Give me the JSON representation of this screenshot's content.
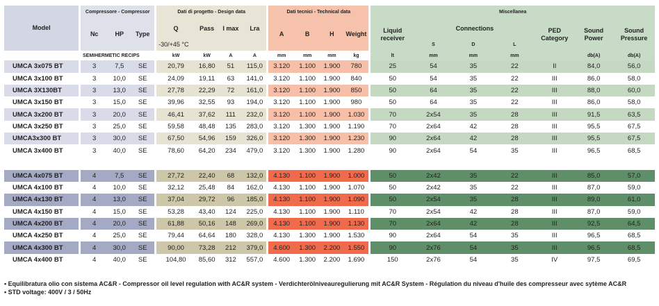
{
  "header": {
    "model": "Model",
    "groups": [
      "Compressore - Compressor",
      "Dati di progetto - Design data",
      "Dati tecnici - Technical data",
      "Miscellanea"
    ],
    "columns": [
      "Nc",
      "HP",
      "Type",
      "Q",
      "Pass",
      "I max",
      "Lra",
      "A",
      "B",
      "H",
      "Weight",
      "Liquid receiver",
      "Connections",
      "PED Category",
      "Sound Power",
      "Sound Pressure"
    ],
    "temperature": "-30/+45 °C",
    "connections_sub": [
      "S",
      "D",
      "L"
    ],
    "units": [
      "SEMIHERMETIC RECIPS",
      "kW",
      "kW",
      "A",
      "A",
      "mm",
      "mm",
      "mm",
      "kg",
      "lt",
      "mm",
      "mm",
      "mm",
      "db(A)",
      "db(A)"
    ]
  },
  "row_groups": [
    [
      [
        "UMCA 3x075 BT",
        "3",
        "7,5",
        "SE",
        "20,79",
        "16,80",
        "51",
        "115,0",
        "3.120",
        "1.100",
        "1.900",
        "780",
        "25",
        "54",
        "35",
        "22",
        "II",
        "84,0",
        "56,0"
      ],
      [
        "UMCA 3x100 BT",
        "3",
        "10,0",
        "SE",
        "24,09",
        "19,11",
        "63",
        "141,0",
        "3.120",
        "1.100",
        "1.900",
        "840",
        "50",
        "54",
        "35",
        "22",
        "III",
        "86,0",
        "58,0"
      ],
      [
        "UMCA 3X130BT",
        "3",
        "13,0",
        "SE",
        "27,78",
        "22,29",
        "72",
        "161,0",
        "3.120",
        "1.100",
        "1.900",
        "850",
        "50",
        "64",
        "35",
        "22",
        "III",
        "88,0",
        "60,0"
      ],
      [
        "UMCA 3x150 BT",
        "3",
        "15,0",
        "SE",
        "39,96",
        "32,55",
        "93",
        "194,0",
        "3.120",
        "1.100",
        "1.900",
        "980",
        "50",
        "64",
        "35",
        "22",
        "III",
        "86,0",
        "58,0"
      ],
      [
        "UMCA 3x200 BT",
        "3",
        "20,0",
        "SE",
        "46,41",
        "37,62",
        "111",
        "232,0",
        "3.120",
        "1.100",
        "1.900",
        "1.030",
        "70",
        "2x54",
        "35",
        "28",
        "III",
        "91,5",
        "63,5"
      ],
      [
        "UMCA 3x250 BT",
        "3",
        "25,0",
        "SE",
        "59,58",
        "48,48",
        "135",
        "283,0",
        "3.120",
        "1.300",
        "1.900",
        "1.190",
        "70",
        "2x64",
        "42",
        "28",
        "III",
        "95,5",
        "67,5"
      ],
      [
        "UMCA3x300 BT",
        "3",
        "30,0",
        "SE",
        "67,50",
        "54,96",
        "159",
        "326,0",
        "3.120",
        "1.300",
        "1.900",
        "1.230",
        "90",
        "2x64",
        "42",
        "28",
        "III",
        "95,5",
        "67,5"
      ],
      [
        "UMCA 3x400 BT",
        "3",
        "40,0",
        "SE",
        "78,60",
        "64,20",
        "234",
        "479,0",
        "3.120",
        "1.300",
        "1.900",
        "1.280",
        "90",
        "2x64",
        "54",
        "35",
        "III",
        "96,5",
        "68,5"
      ]
    ],
    [
      [
        "UMCA 4x075 BT",
        "4",
        "7,5",
        "SE",
        "27,72",
        "22,40",
        "68",
        "132,0",
        "4.130",
        "1.100",
        "1.900",
        "1.000",
        "50",
        "2x42",
        "35",
        "22",
        "III",
        "85,0",
        "57,0"
      ],
      [
        "UMCA 4x100 BT",
        "4",
        "10,0",
        "SE",
        "32,12",
        "25,48",
        "84",
        "162,0",
        "4.130",
        "1.100",
        "1.900",
        "1.070",
        "50",
        "2x42",
        "35",
        "22",
        "III",
        "87,0",
        "59,0"
      ],
      [
        "UMCA 4x130 BT",
        "4",
        "13,0",
        "SE",
        "37,04",
        "29,72",
        "96",
        "185,0",
        "4.130",
        "1.100",
        "1.900",
        "1.090",
        "50",
        "2x54",
        "35",
        "28",
        "III",
        "89,0",
        "61,0"
      ],
      [
        "UMCA 4x150 BT",
        "4",
        "15,0",
        "SE",
        "53,28",
        "43,40",
        "124",
        "225,0",
        "4.130",
        "1.100",
        "1.900",
        "1.110",
        "70",
        "2x54",
        "42",
        "28",
        "III",
        "87,0",
        "59,0"
      ],
      [
        "UMCA 4x200 BT",
        "4",
        "20,0",
        "SE",
        "61,88",
        "50,16",
        "148",
        "269,0",
        "4.130",
        "1.100",
        "1.900",
        "1.130",
        "70",
        "2x64",
        "42",
        "28",
        "III",
        "92,5",
        "64,5"
      ],
      [
        "UMCA 4x250 BT",
        "4",
        "25,0",
        "SE",
        "79,44",
        "64,64",
        "180",
        "328,0",
        "4.130",
        "1.300",
        "1.900",
        "1.530",
        "90",
        "2x64",
        "54",
        "35",
        "III",
        "96,5",
        "68,5"
      ],
      [
        "UMCA 4x300 BT",
        "4",
        "30,0",
        "SE",
        "90,00",
        "73,28",
        "212",
        "379,0",
        "4.600",
        "1.300",
        "2.200",
        "1.550",
        "90",
        "2x76",
        "54",
        "35",
        "III",
        "96,5",
        "68,5"
      ],
      [
        "UMCA 4x400 BT",
        "4",
        "40,0",
        "SE",
        "104,80",
        "85,60",
        "312",
        "557,0",
        "4.600",
        "1.300",
        "2.200",
        "1.690",
        "150",
        "2x76",
        "54",
        "35",
        "IV",
        "97,5",
        "69,5"
      ]
    ]
  ],
  "notes": [
    "• Equilibratura olio con sistema AC&R - Compressor oil level regulation with AC&R system - Verdichterölniveauregulierung mit AC&R System - Régulation du niveau d'huile des compresseur avec sytème AC&R",
    "• STD voltage: 400V / 3 / 50Hz"
  ]
}
